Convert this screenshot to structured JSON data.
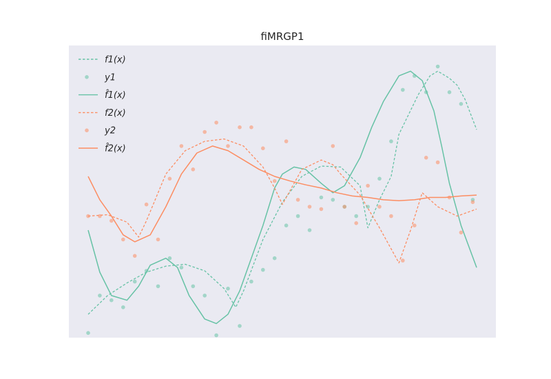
{
  "chart_data": {
    "type": "line",
    "title": "fiMRGP1",
    "xlabel": "",
    "ylabel": "",
    "xlim": [
      0,
      1
    ],
    "ylim": [
      -3.15,
      3.1
    ],
    "grid": false,
    "background": "#eaeaf2",
    "legend_position": "top-left",
    "legend": [
      {
        "key": "f1_true",
        "label": "f1(x)",
        "style": "dashed-line",
        "color": "#66c2a5"
      },
      {
        "key": "y1",
        "label": "y1",
        "style": "marker",
        "color": "#66c2a5"
      },
      {
        "key": "f1_hat",
        "label": "f̂1(x)",
        "style": "solid-line",
        "color": "#66c2a5"
      },
      {
        "key": "f2_true",
        "label": "f2(x)",
        "style": "dashed-line",
        "color": "#fc8d62"
      },
      {
        "key": "y2",
        "label": "y2",
        "style": "marker",
        "color": "#fc8d62"
      },
      {
        "key": "f2_hat",
        "label": "f̂2(x)",
        "style": "solid-line",
        "color": "#fc8d62"
      }
    ],
    "series": [
      {
        "key": "f1_true",
        "color": "#66c2a5",
        "dash": true,
        "x": [
          0.0,
          0.05,
          0.1,
          0.15,
          0.2,
          0.25,
          0.3,
          0.35,
          0.38,
          0.4,
          0.45,
          0.5,
          0.55,
          0.6,
          0.65,
          0.7,
          0.72,
          0.75,
          0.78,
          0.8,
          0.85,
          0.88,
          0.9,
          0.93,
          0.95,
          0.97,
          1.0
        ],
        "y": [
          -2.65,
          -2.25,
          -1.98,
          -1.75,
          -1.62,
          -1.58,
          -1.72,
          -2.1,
          -2.5,
          -2.15,
          -1.05,
          -0.25,
          0.3,
          0.52,
          0.5,
          0.1,
          -0.8,
          -0.2,
          0.3,
          1.2,
          2.05,
          2.45,
          2.55,
          2.4,
          2.25,
          1.95,
          1.3
        ]
      },
      {
        "key": "f1_hat",
        "color": "#66c2a5",
        "dash": false,
        "x": [
          0.0,
          0.03,
          0.06,
          0.1,
          0.13,
          0.16,
          0.2,
          0.23,
          0.26,
          0.3,
          0.33,
          0.36,
          0.39,
          0.42,
          0.45,
          0.48,
          0.5,
          0.53,
          0.56,
          0.6,
          0.63,
          0.66,
          0.7,
          0.73,
          0.76,
          0.8,
          0.83,
          0.86,
          0.89,
          0.91,
          0.93,
          0.96,
          1.0
        ],
        "y": [
          -0.85,
          -1.75,
          -2.25,
          -2.35,
          -2.05,
          -1.6,
          -1.45,
          -1.65,
          -2.25,
          -2.75,
          -2.85,
          -2.65,
          -2.15,
          -1.45,
          -0.75,
          0.05,
          0.35,
          0.5,
          0.45,
          0.15,
          -0.05,
          0.1,
          0.7,
          1.35,
          1.9,
          2.45,
          2.55,
          2.35,
          1.7,
          0.95,
          0.15,
          -0.75,
          -1.65
        ]
      },
      {
        "key": "f2_true",
        "color": "#fc8d62",
        "dash": true,
        "x": [
          0.0,
          0.05,
          0.1,
          0.13,
          0.15,
          0.2,
          0.25,
          0.3,
          0.35,
          0.4,
          0.45,
          0.48,
          0.5,
          0.55,
          0.6,
          0.63,
          0.65,
          0.7,
          0.75,
          0.8,
          0.83,
          0.86,
          0.9,
          0.95,
          1.0
        ],
        "y": [
          -0.55,
          -0.52,
          -0.68,
          -1.0,
          -0.65,
          0.35,
          0.85,
          1.05,
          1.1,
          0.95,
          0.5,
          0.05,
          -0.3,
          0.45,
          0.65,
          0.55,
          0.35,
          -0.1,
          -0.8,
          -1.55,
          -0.85,
          -0.05,
          -0.35,
          -0.55,
          -0.4
        ]
      },
      {
        "key": "f2_hat",
        "color": "#fc8d62",
        "dash": false,
        "x": [
          0.0,
          0.03,
          0.06,
          0.09,
          0.12,
          0.16,
          0.2,
          0.24,
          0.28,
          0.32,
          0.36,
          0.4,
          0.44,
          0.48,
          0.52,
          0.56,
          0.6,
          0.64,
          0.68,
          0.72,
          0.76,
          0.8,
          0.84,
          0.88,
          0.92,
          0.96,
          1.0
        ],
        "y": [
          0.3,
          -0.2,
          -0.55,
          -0.95,
          -1.1,
          -0.95,
          -0.35,
          0.35,
          0.8,
          0.95,
          0.85,
          0.65,
          0.45,
          0.3,
          0.2,
          0.12,
          0.05,
          -0.05,
          -0.12,
          -0.15,
          -0.2,
          -0.22,
          -0.2,
          -0.15,
          -0.15,
          -0.12,
          -0.1
        ]
      }
    ],
    "scatter": [
      {
        "key": "y1",
        "color": "#66c2a5",
        "x": [
          0.0,
          0.03,
          0.06,
          0.09,
          0.12,
          0.15,
          0.18,
          0.21,
          0.24,
          0.27,
          0.3,
          0.33,
          0.36,
          0.39,
          0.42,
          0.45,
          0.48,
          0.51,
          0.54,
          0.57,
          0.6,
          0.63,
          0.66,
          0.69,
          0.72,
          0.75,
          0.78,
          0.81,
          0.84,
          0.87,
          0.9,
          0.93,
          0.96,
          0.99
        ],
        "y": [
          -3.05,
          -2.25,
          -2.35,
          -2.5,
          -1.95,
          -1.72,
          -2.05,
          -1.45,
          -1.65,
          -2.05,
          -2.25,
          -3.1,
          -2.1,
          -2.9,
          -1.95,
          -1.7,
          -1.45,
          -0.75,
          -0.55,
          -0.85,
          -0.15,
          -0.2,
          -0.35,
          -0.55,
          -0.35,
          0.25,
          1.05,
          2.15,
          2.45,
          2.1,
          2.65,
          2.1,
          1.85,
          -0.2
        ]
      },
      {
        "key": "y2",
        "color": "#fc8d62",
        "x": [
          0.0,
          0.03,
          0.06,
          0.09,
          0.12,
          0.15,
          0.18,
          0.21,
          0.24,
          0.27,
          0.3,
          0.33,
          0.36,
          0.39,
          0.42,
          0.45,
          0.48,
          0.51,
          0.54,
          0.57,
          0.6,
          0.63,
          0.66,
          0.69,
          0.72,
          0.75,
          0.78,
          0.81,
          0.84,
          0.87,
          0.9,
          0.93,
          0.96,
          0.99
        ],
        "y": [
          -0.55,
          -0.55,
          -0.65,
          -1.05,
          -1.4,
          -0.3,
          -1.05,
          0.25,
          0.95,
          0.45,
          1.25,
          1.45,
          0.95,
          1.35,
          1.35,
          0.9,
          0.2,
          1.05,
          -0.2,
          -0.35,
          -0.4,
          0.95,
          -0.35,
          -0.7,
          0.1,
          -0.35,
          -0.55,
          -1.5,
          -0.75,
          0.7,
          0.6,
          -0.15,
          -0.9,
          -0.25
        ]
      }
    ]
  }
}
